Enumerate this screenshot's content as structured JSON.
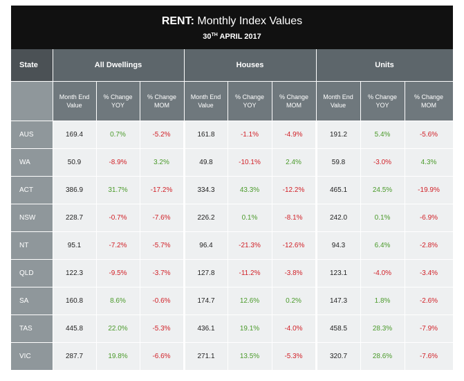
{
  "title": {
    "bold": "RENT:",
    "rest": " Monthly Index Values",
    "date_day": "30",
    "date_suffix": "TH",
    "date_rest": " APRIL 2017"
  },
  "header": {
    "state": "State",
    "groups": [
      "All Dwellings",
      "Houses",
      "Units"
    ],
    "subcols": [
      [
        "Month End",
        "Value"
      ],
      [
        "% Change",
        "YOY"
      ],
      [
        "% Change",
        "MOM"
      ]
    ]
  },
  "rows": [
    {
      "state": "AUS",
      "vals": [
        "169.4",
        "0.7%",
        "-5.2%",
        "161.8",
        "-1.1%",
        "-4.9%",
        "191.2",
        "5.4%",
        "-5.6%"
      ]
    },
    {
      "state": "WA",
      "vals": [
        "50.9",
        "-8.9%",
        "3.2%",
        "49.8",
        "-10.1%",
        "2.4%",
        "59.8",
        "-3.0%",
        "4.3%"
      ]
    },
    {
      "state": "ACT",
      "vals": [
        "386.9",
        "31.7%",
        "-17.2%",
        "334.3",
        "43.3%",
        "-12.2%",
        "465.1",
        "24.5%",
        "-19.9%"
      ]
    },
    {
      "state": "NSW",
      "vals": [
        "228.7",
        "-0.7%",
        "-7.6%",
        "226.2",
        "0.1%",
        "-8.1%",
        "242.0",
        "0.1%",
        "-6.9%"
      ]
    },
    {
      "state": "NT",
      "vals": [
        "95.1",
        "-7.2%",
        "-5.7%",
        "96.4",
        "-21.3%",
        "-12.6%",
        "94.3",
        "6.4%",
        "-2.8%"
      ]
    },
    {
      "state": "QLD",
      "vals": [
        "122.3",
        "-9.5%",
        "-3.7%",
        "127.8",
        "-11.2%",
        "-3.8%",
        "123.1",
        "-4.0%",
        "-3.4%"
      ]
    },
    {
      "state": "SA",
      "vals": [
        "160.8",
        "8.6%",
        "-0.6%",
        "174.7",
        "12.6%",
        "0.2%",
        "147.3",
        "1.8%",
        "-2.6%"
      ]
    },
    {
      "state": "TAS",
      "vals": [
        "445.8",
        "22.0%",
        "-5.3%",
        "436.1",
        "19.1%",
        "-4.0%",
        "458.5",
        "28.3%",
        "-7.9%"
      ]
    },
    {
      "state": "VIC",
      "vals": [
        "287.7",
        "19.8%",
        "-6.6%",
        "271.1",
        "13.5%",
        "-5.3%",
        "320.7",
        "28.6%",
        "-7.6%"
      ]
    }
  ],
  "colors": {
    "positive": "#4a9a2a",
    "negative": "#d11f26",
    "title_bg": "#111111",
    "header_bg": "#5d666b"
  }
}
